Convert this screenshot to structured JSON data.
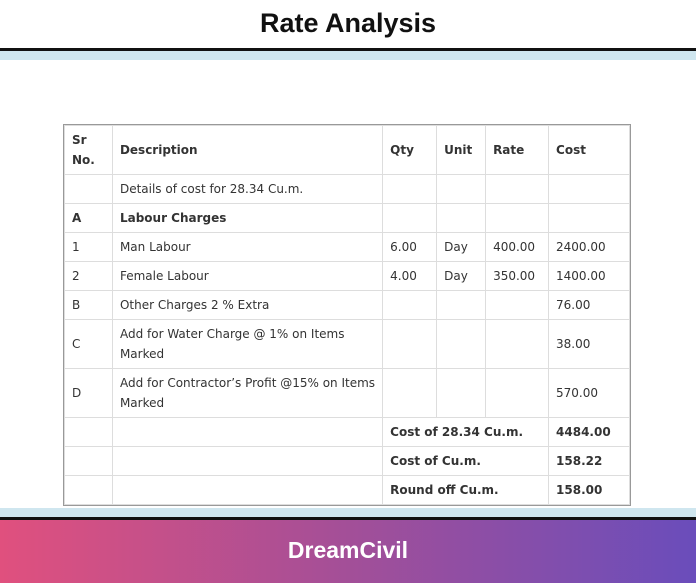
{
  "header": {
    "title": "Rate Analysis"
  },
  "table": {
    "columns": [
      "Sr No.",
      "Description",
      "Qty",
      "Unit",
      "Rate",
      "Cost"
    ],
    "rows": [
      [
        null,
        "Details of cost for 28.34 Cu.m.",
        null,
        null,
        null,
        null
      ],
      [
        "A",
        "Labour Charges",
        null,
        null,
        null,
        null
      ],
      [
        "1",
        "Man Labour",
        "6.00",
        "Day",
        "400.00",
        "2400.00"
      ],
      [
        "2",
        "Female Labour",
        "4.00",
        "Day",
        "350.00",
        "1400.00"
      ],
      [
        "B",
        "Other Charges 2 % Extra",
        null,
        null,
        null,
        "76.00"
      ],
      [
        "C",
        "Add for Water Charge @ 1% on Items Marked",
        null,
        null,
        null,
        "38.00"
      ],
      [
        "D",
        "Add for Contractor’s Profit @15% on Items Marked",
        null,
        null,
        null,
        "570.00"
      ]
    ],
    "summary": [
      {
        "label": "Cost of 28.34 Cu.m.",
        "cost": "4484.00"
      },
      {
        "label": "Cost of Cu.m.",
        "cost": "158.22"
      },
      {
        "label": "Round off Cu.m.",
        "cost": "158.00"
      }
    ]
  },
  "footer": {
    "brand": "DreamCivil"
  }
}
